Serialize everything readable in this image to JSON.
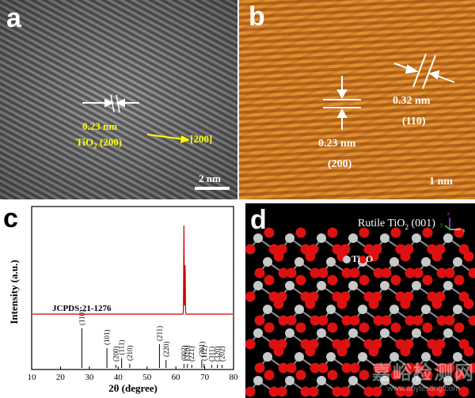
{
  "panels": {
    "a": {
      "letter": "a",
      "spacing_label": "0.23 nm",
      "phase_label_prefix": "TiO",
      "phase_label_sub": "2",
      "phase_label_suffix": " (200)",
      "direction_label": "[200]",
      "scale_label": "2 nm",
      "annotation_color": "#ffff00"
    },
    "b": {
      "letter": "b",
      "spacing_200_label": "0.23 nm",
      "plane_200_label": "(200)",
      "spacing_110_label": "0.32 nm",
      "plane_110_label": "(110)",
      "scale_label": "1 nm"
    },
    "c": {
      "letter": "c",
      "reference_label": "JCPDS:21-1276",
      "curve_color": "#cc0000"
    },
    "d": {
      "letter": "d",
      "title_prefix": "Rutile TiO",
      "title_sub": "2",
      "title_suffix": " (001)",
      "legend_ti": "Ti",
      "legend_o": "O",
      "axis_z": "z",
      "axis_y": "y",
      "axis_x": "x",
      "ti_color": "#c8c8c8",
      "o_color": "#dd1111",
      "watermark_cn": "嘉峪检测网",
      "watermark_url": "www.anytesting.com"
    }
  },
  "chart_data": {
    "type": "line",
    "title": "",
    "xlabel": "2θ (degree)",
    "ylabel": "Intensity (a.u.)",
    "xlim": [
      10,
      80
    ],
    "xticks": [
      10,
      20,
      30,
      40,
      50,
      60,
      70,
      80
    ],
    "measured_peaks": [
      {
        "two_theta": 62.8,
        "intensity": 1.0
      },
      {
        "two_theta": 63.2,
        "intensity": 0.55
      }
    ],
    "reference_lines": [
      {
        "hkl": "(110)",
        "two_theta": 27.4,
        "intensity": 1.0
      },
      {
        "hkl": "(101)",
        "two_theta": 36.1,
        "intensity": 0.5
      },
      {
        "hkl": "(200)",
        "two_theta": 39.2,
        "intensity": 0.08
      },
      {
        "hkl": "(111)",
        "two_theta": 41.2,
        "intensity": 0.25
      },
      {
        "hkl": "(210)",
        "two_theta": 44.0,
        "intensity": 0.1
      },
      {
        "hkl": "(211)",
        "two_theta": 54.3,
        "intensity": 0.6
      },
      {
        "hkl": "(220)",
        "two_theta": 56.6,
        "intensity": 0.2
      },
      {
        "hkl": "(002)",
        "two_theta": 62.8,
        "intensity": 0.1
      },
      {
        "hkl": "(310)",
        "two_theta": 64.0,
        "intensity": 0.1
      },
      {
        "hkl": "(221)",
        "two_theta": 65.5,
        "intensity": 0.05
      },
      {
        "hkl": "(301)",
        "two_theta": 69.0,
        "intensity": 0.2
      },
      {
        "hkl": "(112)",
        "two_theta": 69.8,
        "intensity": 0.1
      },
      {
        "hkl": "(311)",
        "two_theta": 72.4,
        "intensity": 0.05
      },
      {
        "hkl": "(320)",
        "two_theta": 74.4,
        "intensity": 0.05
      },
      {
        "hkl": "(202)",
        "two_theta": 76.0,
        "intensity": 0.05
      }
    ]
  }
}
